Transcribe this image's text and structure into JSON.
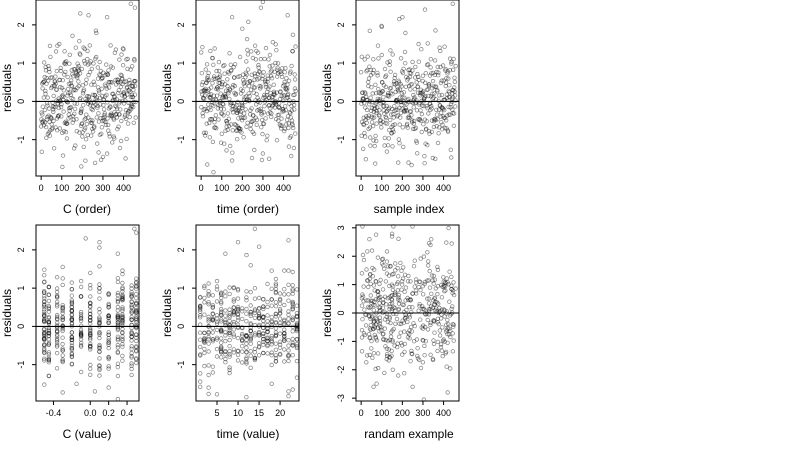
{
  "chart_data": [
    {
      "type": "scatter",
      "xlabel": "C (order)",
      "ylabel": "residuals",
      "xlim": [
        -25,
        475
      ],
      "ylim": [
        -1.95,
        2.65
      ],
      "xticks": [
        0,
        100,
        200,
        300,
        400
      ],
      "xtick_labels": [
        "0",
        "100",
        "200",
        "300",
        "400"
      ],
      "yticks": [
        -1,
        0,
        1,
        2
      ],
      "ytick_labels": [
        "-1",
        "0",
        "1",
        "2"
      ],
      "hline": 0,
      "grid": false,
      "legend": "none",
      "x_mode": "index",
      "n": 460,
      "seed": 11,
      "points": [
        [
          190,
          2.3
        ],
        [
          230,
          2.25
        ],
        [
          320,
          2.2
        ],
        [
          435,
          2.55
        ],
        [
          455,
          2.45
        ],
        [
          215,
          -1.55
        ],
        [
          195,
          -1.7
        ],
        [
          300,
          -1.45
        ]
      ]
    },
    {
      "type": "scatter",
      "xlabel": "time (order)",
      "ylabel": "residuals",
      "xlim": [
        -25,
        475
      ],
      "ylim": [
        -1.95,
        2.65
      ],
      "xticks": [
        0,
        100,
        200,
        300,
        400
      ],
      "xtick_labels": [
        "0",
        "100",
        "200",
        "300",
        "400"
      ],
      "yticks": [
        -1,
        0,
        1,
        2
      ],
      "ytick_labels": [
        "-1",
        "0",
        "1",
        "2"
      ],
      "hline": 0,
      "grid": false,
      "legend": "none",
      "x_mode": "index",
      "n": 460,
      "seed": 23,
      "points": [
        [
          150,
          2.2
        ],
        [
          300,
          2.6
        ],
        [
          290,
          2.45
        ],
        [
          420,
          2.25
        ],
        [
          200,
          1.9
        ],
        [
          30,
          -1.65
        ],
        [
          60,
          -1.85
        ],
        [
          330,
          -1.5
        ]
      ]
    },
    {
      "type": "scatter",
      "xlabel": "sample index",
      "ylabel": "residuals",
      "xlim": [
        -25,
        475
      ],
      "ylim": [
        -1.95,
        2.65
      ],
      "xticks": [
        0,
        100,
        200,
        300,
        400
      ],
      "xtick_labels": [
        "0",
        "100",
        "200",
        "300",
        "400"
      ],
      "yticks": [
        -1,
        0,
        1,
        2
      ],
      "ytick_labels": [
        "-1",
        "0",
        "1",
        "2"
      ],
      "hline": 0,
      "grid": false,
      "legend": "none",
      "x_mode": "index",
      "n": 460,
      "seed": 37,
      "points": [
        [
          200,
          2.2
        ],
        [
          185,
          2.15
        ],
        [
          310,
          2.4
        ],
        [
          445,
          2.55
        ],
        [
          100,
          1.95
        ],
        [
          180,
          -1.6
        ],
        [
          230,
          -1.6
        ],
        [
          360,
          -1.5
        ]
      ]
    },
    {
      "type": "scatter",
      "xlabel": "C (value)",
      "ylabel": "residuals",
      "xlim": [
        -0.59,
        0.53
      ],
      "ylim": [
        -1.95,
        2.65
      ],
      "xticks": [
        -0.4,
        0.0,
        0.2,
        0.4
      ],
      "xtick_labels": [
        "-0.4",
        "0.0",
        "0.2",
        "0.4"
      ],
      "yticks": [
        -1,
        0,
        1,
        2
      ],
      "ytick_labels": [
        "-1",
        "0",
        "1",
        "2"
      ],
      "hline": 0,
      "grid": false,
      "legend": "none",
      "x_mode": "categorical",
      "x_levels": [
        -0.5,
        -0.45,
        -0.36,
        -0.3,
        -0.2,
        -0.1,
        0.0,
        0.1,
        0.2,
        0.3,
        0.35,
        0.45,
        0.5
      ],
      "n": 460,
      "seed": 53,
      "points": [
        [
          -0.05,
          2.3
        ],
        [
          0.1,
          2.2
        ],
        [
          0.48,
          2.55
        ],
        [
          0.5,
          2.45
        ],
        [
          0.3,
          1.9
        ],
        [
          -0.15,
          -1.5
        ],
        [
          0.05,
          -1.7
        ],
        [
          0.2,
          -1.6
        ]
      ]
    },
    {
      "type": "scatter",
      "xlabel": "time (value)",
      "ylabel": "residuals",
      "xlim": [
        0,
        24.5
      ],
      "ylim": [
        -1.95,
        2.65
      ],
      "xticks": [
        5,
        10,
        15,
        20
      ],
      "xtick_labels": [
        "5",
        "10",
        "15",
        "20"
      ],
      "yticks": [
        -1,
        0,
        1,
        2
      ],
      "ytick_labels": [
        "-1",
        "0",
        "1",
        "2"
      ],
      "hline": 0,
      "grid": false,
      "legend": "none",
      "x_mode": "categorical",
      "x_levels": [
        1,
        2,
        3,
        4,
        5,
        6,
        7,
        8,
        9,
        10,
        11,
        12,
        13,
        14,
        15,
        16,
        17,
        18,
        19,
        20,
        21,
        22,
        23,
        24
      ],
      "n": 460,
      "seed": 71,
      "points": [
        [
          10,
          2.2
        ],
        [
          14,
          2.55
        ],
        [
          22,
          2.25
        ],
        [
          7,
          1.9
        ],
        [
          3,
          -1.6
        ],
        [
          18,
          -1.5
        ],
        [
          22,
          -1.7
        ],
        [
          12,
          -1.85
        ]
      ]
    },
    {
      "type": "scatter",
      "xlabel": "randam example",
      "ylabel": "residuals",
      "xlim": [
        -25,
        475
      ],
      "ylim": [
        -3.1,
        3.1
      ],
      "xticks": [
        0,
        100,
        200,
        300,
        400
      ],
      "xtick_labels": [
        "0",
        "100",
        "200",
        "300",
        "400"
      ],
      "yticks": [
        -3,
        -2,
        -1,
        0,
        1,
        2,
        3
      ],
      "ytick_labels": [
        "-3",
        "-2",
        "-1",
        "0",
        "1",
        "2",
        "3"
      ],
      "hline": 0,
      "grid": false,
      "legend": "none",
      "x_mode": "uniform",
      "n": 460,
      "seed": 97,
      "sd": 1.0,
      "points": [
        [
          40,
          2.6
        ],
        [
          150,
          2.7
        ],
        [
          340,
          2.6
        ],
        [
          60,
          -2.6
        ],
        [
          250,
          -2.6
        ],
        [
          420,
          -2.8
        ],
        [
          180,
          -2.2
        ]
      ]
    }
  ]
}
